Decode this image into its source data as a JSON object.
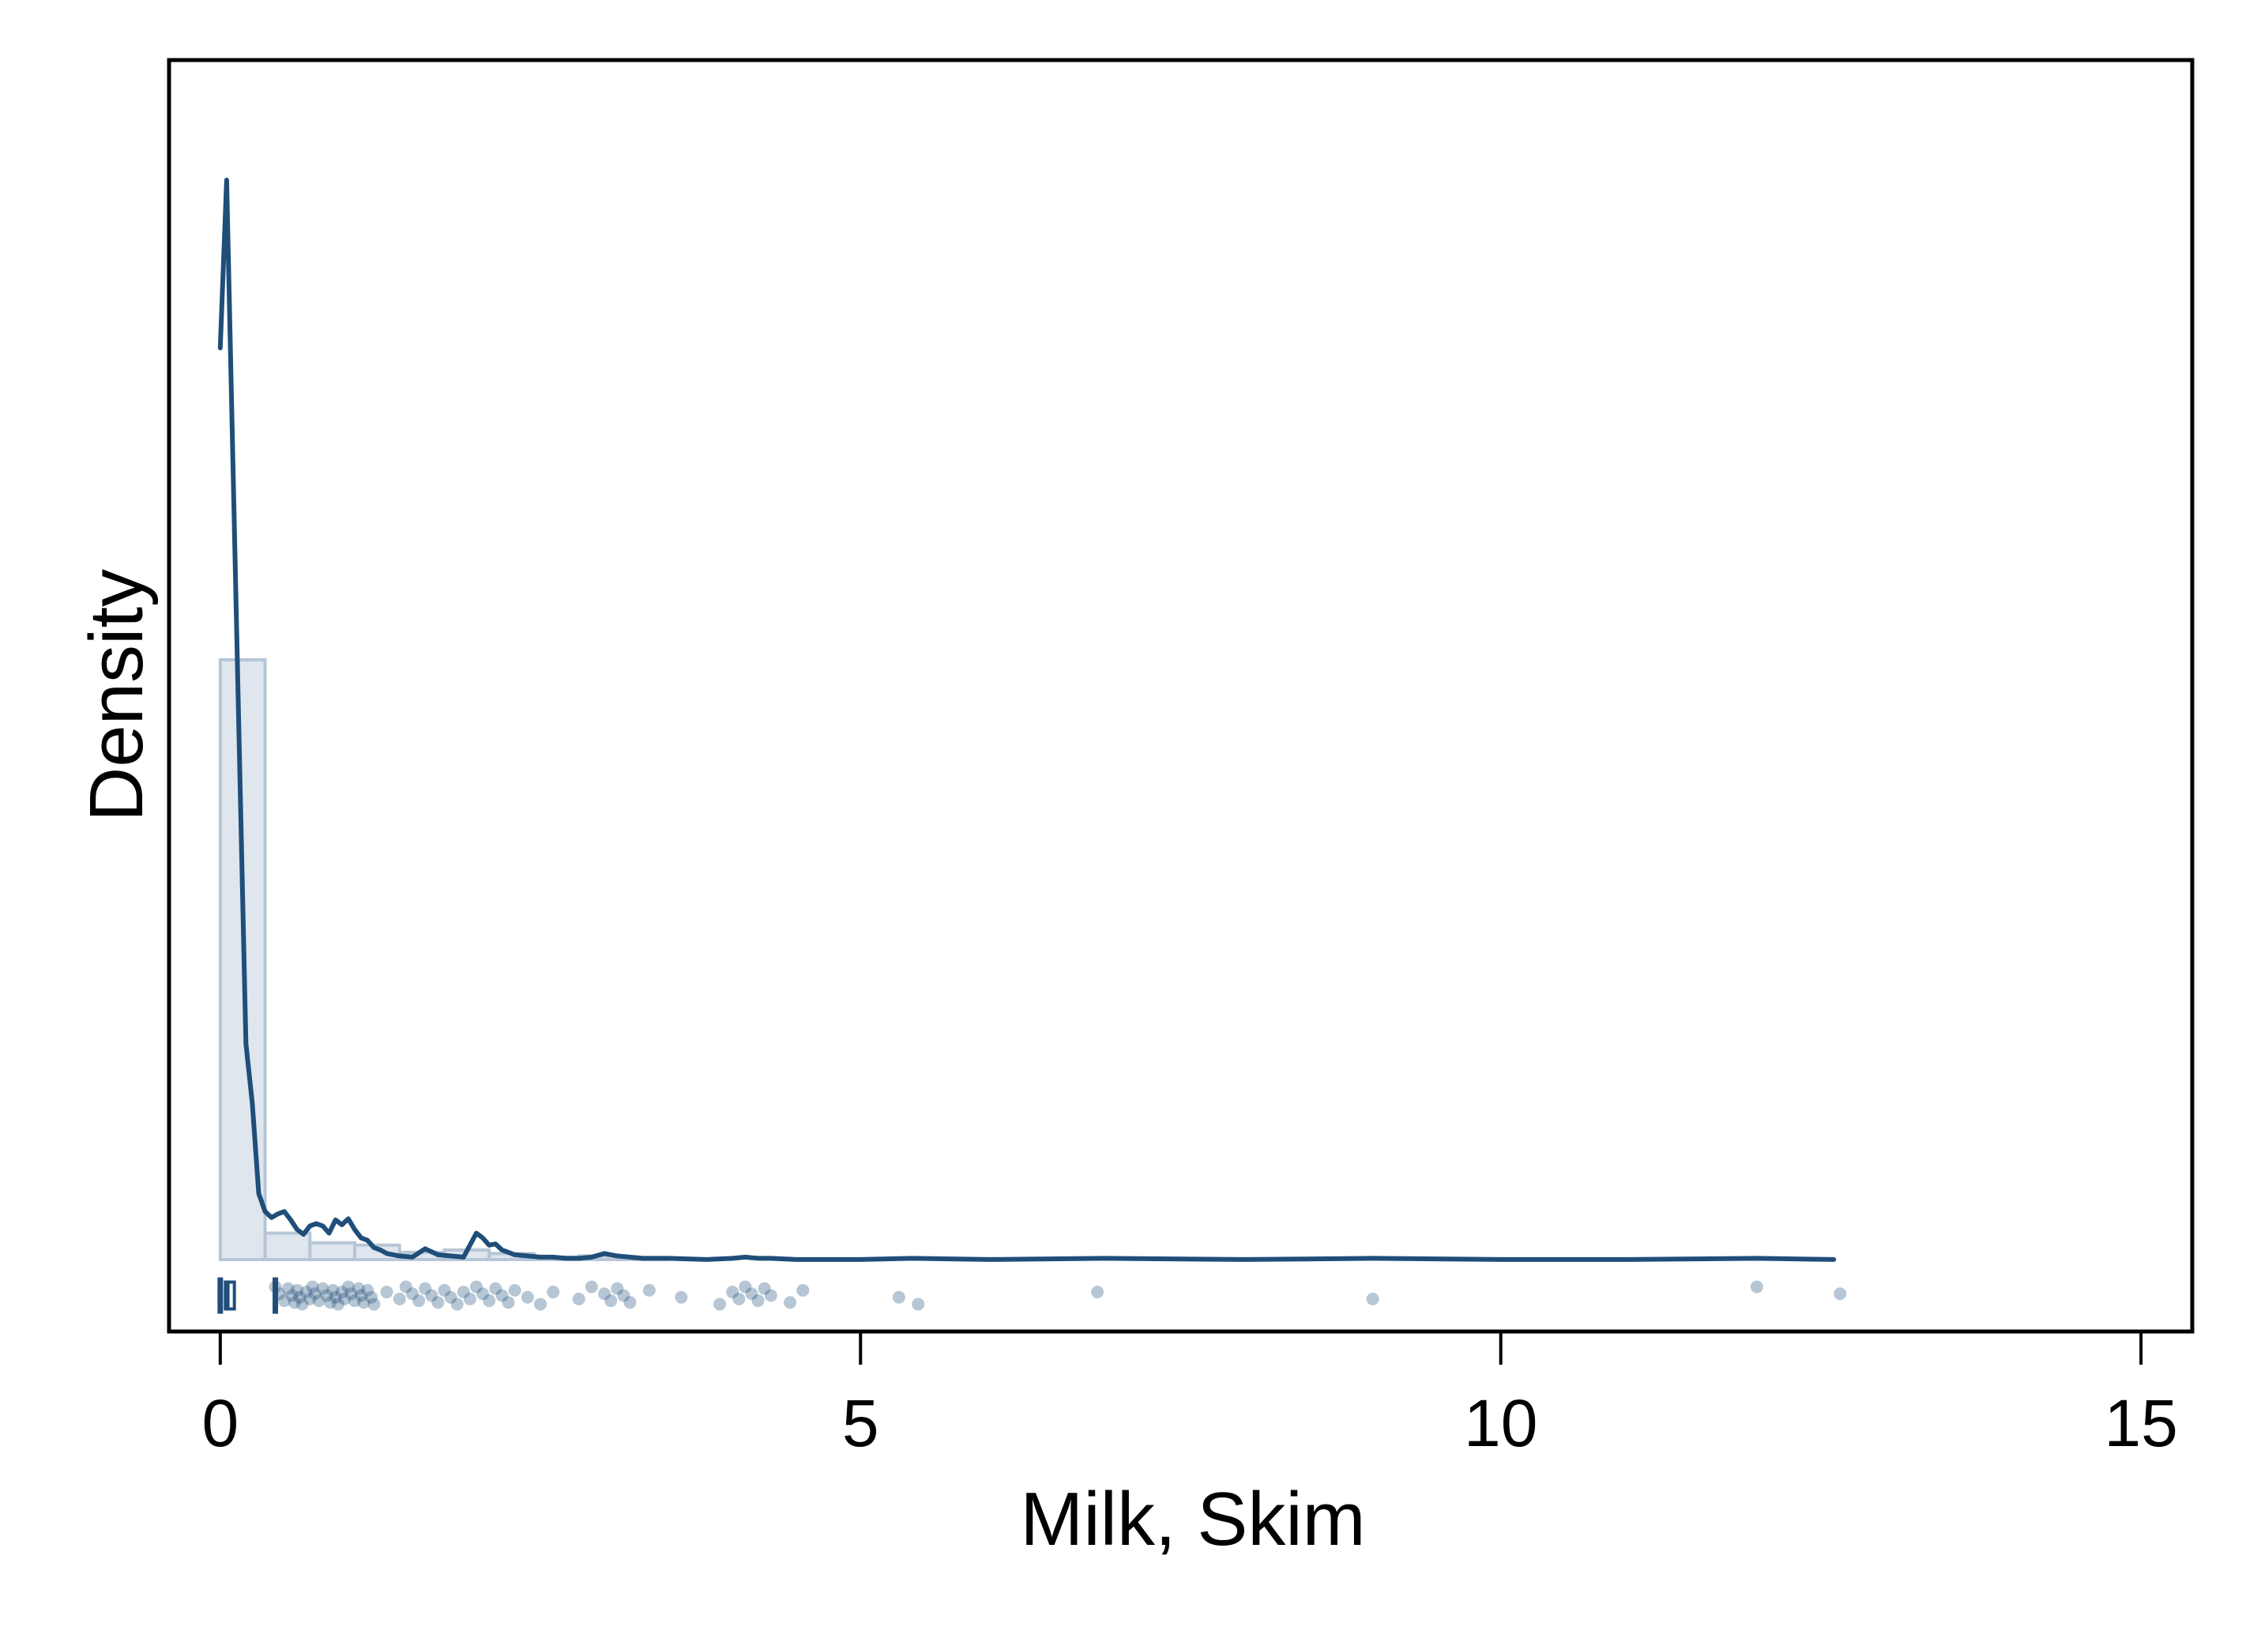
{
  "chart_data": {
    "type": "histogram",
    "xlabel": "Milk, Skim",
    "ylabel": "Density",
    "xlim": [
      -0.4,
      15.4
    ],
    "ylim": [
      -0.06,
      1.0
    ],
    "xticks": [
      0,
      5,
      10,
      15
    ],
    "xtick_labels": [
      "0",
      "5",
      "10",
      "15"
    ],
    "yticks": [],
    "grid": false,
    "colors": {
      "line": "#1f4e79",
      "bar_fill": "#dfe6ee",
      "bar_stroke": "#b7c6d6",
      "points": "#1f4e79"
    },
    "histogram": {
      "bins": [
        {
          "x0": 0.0,
          "x1": 0.35,
          "density": 0.5
        },
        {
          "x0": 0.35,
          "x1": 0.7,
          "density": 0.022
        },
        {
          "x0": 0.7,
          "x1": 1.05,
          "density": 0.014
        },
        {
          "x0": 1.05,
          "x1": 1.4,
          "density": 0.012
        },
        {
          "x0": 1.4,
          "x1": 1.75,
          "density": 0.006
        },
        {
          "x0": 1.75,
          "x1": 2.1,
          "density": 0.008
        },
        {
          "x0": 2.1,
          "x1": 2.45,
          "density": 0.005
        },
        {
          "x0": 2.45,
          "x1": 2.8,
          "density": 0.002
        },
        {
          "x0": 2.8,
          "x1": 3.15,
          "density": 0.003
        },
        {
          "x0": 3.15,
          "x1": 3.5,
          "density": 0.001
        }
      ]
    },
    "kde": {
      "x": [
        0.0,
        0.05,
        0.1,
        0.15,
        0.2,
        0.25,
        0.3,
        0.35,
        0.4,
        0.45,
        0.5,
        0.55,
        0.6,
        0.65,
        0.7,
        0.75,
        0.8,
        0.85,
        0.9,
        0.95,
        1.0,
        1.05,
        1.1,
        1.15,
        1.2,
        1.25,
        1.3,
        1.4,
        1.5,
        1.6,
        1.7,
        1.8,
        1.9,
        2.0,
        2.05,
        2.1,
        2.15,
        2.2,
        2.25,
        2.3,
        2.4,
        2.5,
        2.6,
        2.7,
        2.8,
        2.9,
        3.0,
        3.1,
        3.2,
        3.3,
        3.5,
        3.8,
        4.0,
        4.1,
        4.2,
        4.3,
        4.5,
        5.0,
        5.4,
        6.0,
        6.9,
        8.0,
        9.0,
        10.0,
        11.0,
        12.0,
        12.6
      ],
      "y": [
        0.76,
        0.9,
        0.66,
        0.42,
        0.18,
        0.13,
        0.055,
        0.04,
        0.035,
        0.038,
        0.04,
        0.033,
        0.025,
        0.021,
        0.028,
        0.03,
        0.028,
        0.022,
        0.033,
        0.029,
        0.034,
        0.025,
        0.018,
        0.016,
        0.01,
        0.008,
        0.005,
        0.003,
        0.002,
        0.009,
        0.004,
        0.003,
        0.002,
        0.022,
        0.018,
        0.012,
        0.013,
        0.008,
        0.006,
        0.004,
        0.003,
        0.002,
        0.002,
        0.001,
        0.001,
        0.002,
        0.005,
        0.003,
        0.002,
        0.001,
        0.001,
        0.0,
        0.001,
        0.002,
        0.001,
        0.001,
        0.0,
        0.0,
        0.001,
        0.0,
        0.001,
        0.0,
        0.001,
        0.0,
        0.0,
        0.001,
        0.0
      ]
    },
    "boxplot": {
      "min": 0.0,
      "q1": 0.04,
      "median": 0.06,
      "q3": 0.11,
      "max": 0.43
    },
    "rug_points": [
      0.43,
      0.46,
      0.5,
      0.53,
      0.56,
      0.58,
      0.6,
      0.62,
      0.64,
      0.67,
      0.7,
      0.72,
      0.74,
      0.77,
      0.8,
      0.83,
      0.86,
      0.88,
      0.9,
      0.92,
      0.95,
      0.97,
      1.0,
      1.02,
      1.05,
      1.08,
      1.1,
      1.12,
      1.15,
      1.18,
      1.2,
      1.3,
      1.4,
      1.45,
      1.5,
      1.55,
      1.6,
      1.65,
      1.7,
      1.75,
      1.8,
      1.85,
      1.9,
      1.95,
      2.0,
      2.05,
      2.1,
      2.15,
      2.2,
      2.25,
      2.3,
      2.4,
      2.5,
      2.6,
      2.8,
      2.9,
      3.0,
      3.05,
      3.1,
      3.15,
      3.2,
      3.35,
      3.6,
      3.9,
      4.0,
      4.05,
      4.1,
      4.15,
      4.2,
      4.25,
      4.3,
      4.45,
      4.55,
      5.3,
      5.45,
      6.85,
      9.0,
      12.0,
      12.65
    ]
  }
}
